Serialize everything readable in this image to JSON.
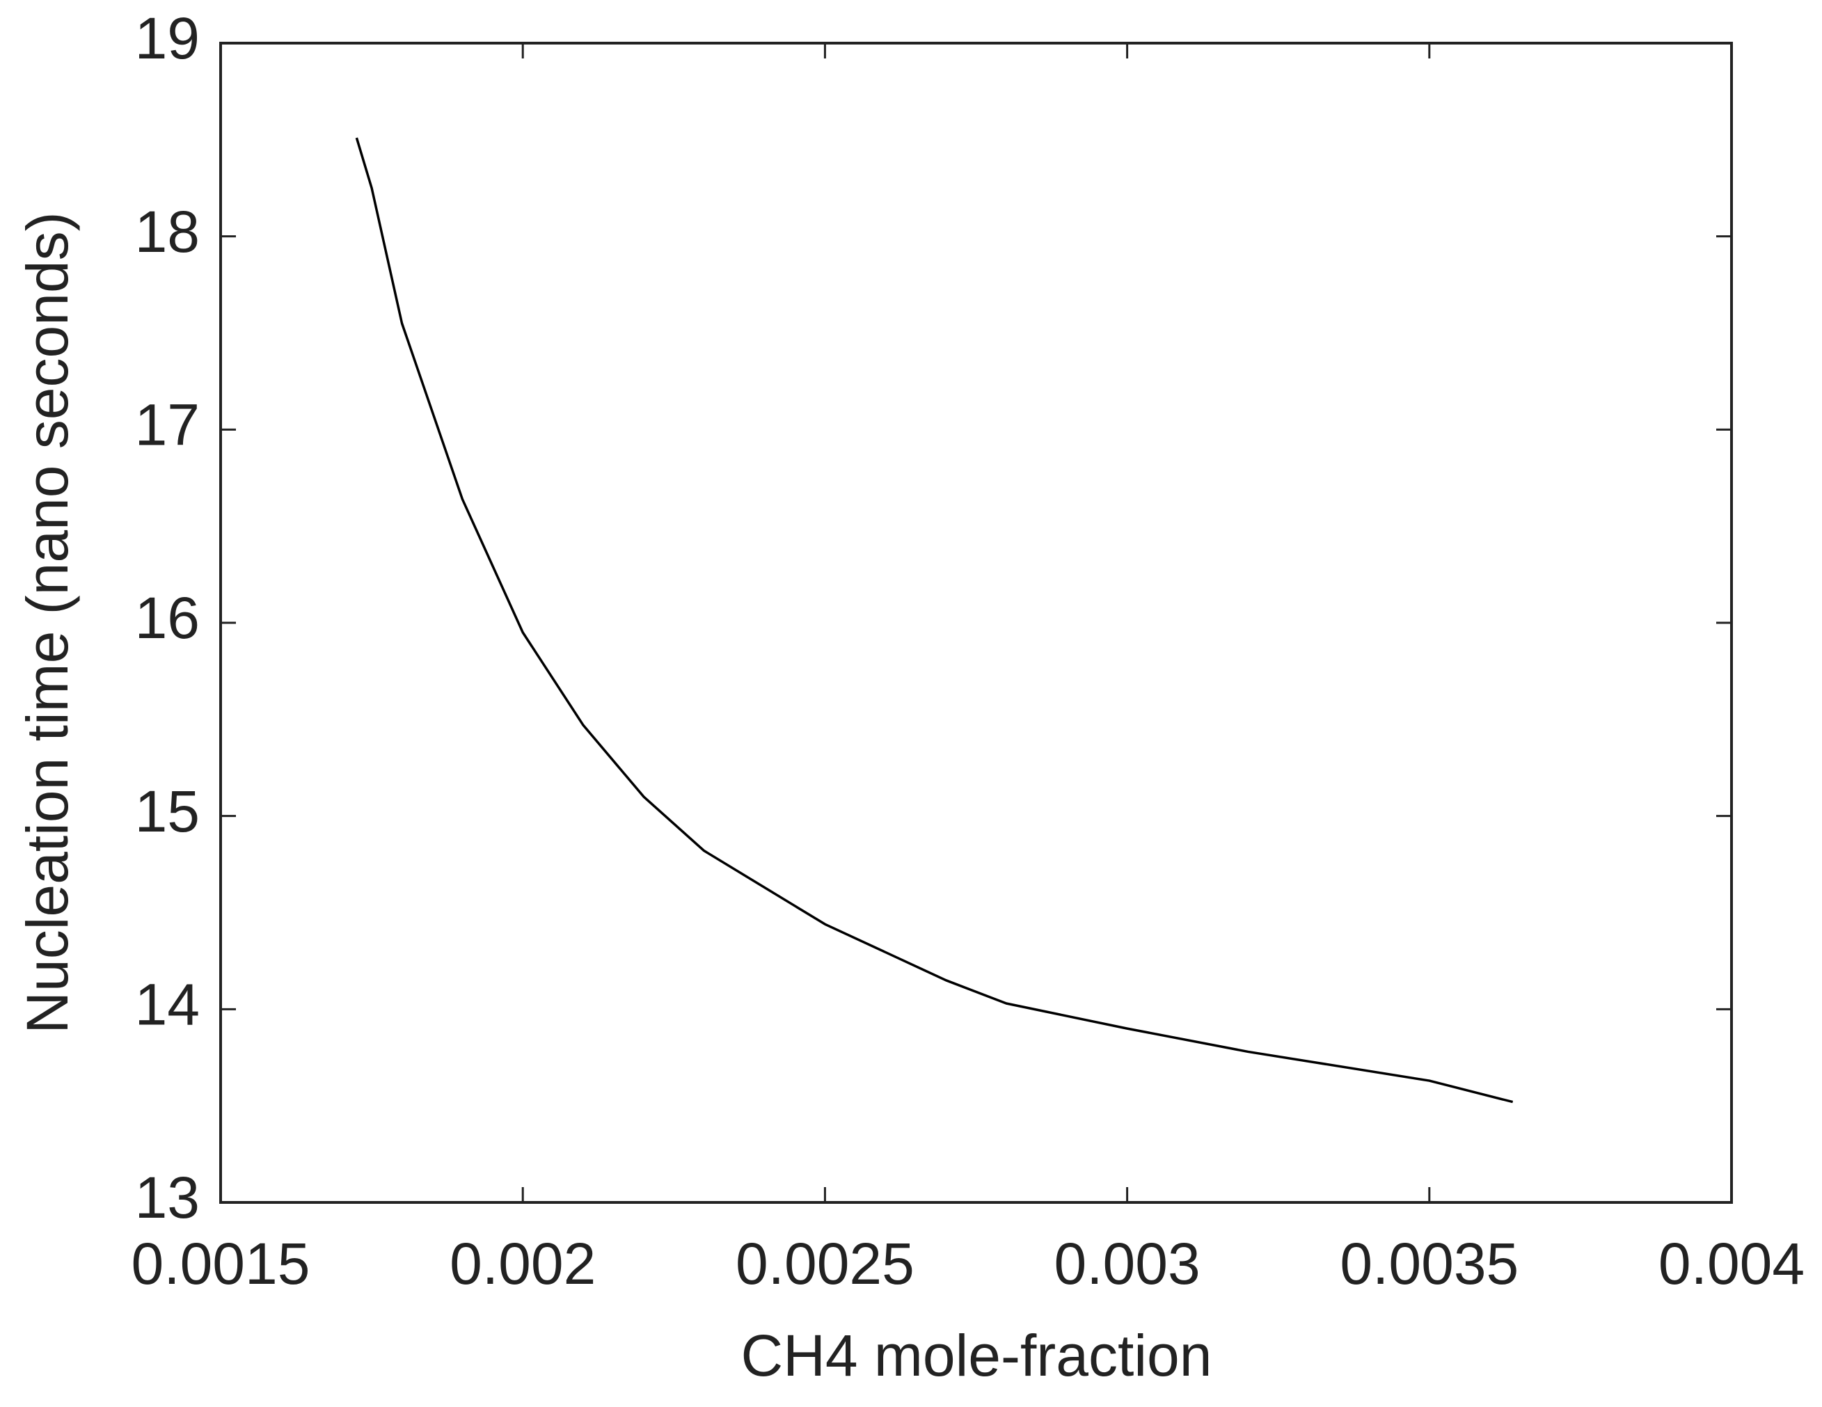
{
  "chart_data": {
    "type": "line",
    "x_label": "CH4 mole-fraction",
    "y_label": "Nucleation time (nano seconds)",
    "x": [
      0.001725,
      0.00175,
      0.0018,
      0.0019,
      0.002,
      0.0021,
      0.0022,
      0.0023,
      0.0025,
      0.0027,
      0.0028,
      0.003,
      0.0032,
      0.0035,
      0.003638
    ],
    "series": [
      {
        "color": "#000000",
        "values": [
          18.51,
          18.25,
          17.55,
          16.64,
          15.95,
          15.47,
          15.1,
          14.82,
          14.44,
          14.15,
          14.03,
          13.9,
          13.78,
          13.63,
          13.52
        ]
      }
    ],
    "xlim": [
      0.0015,
      0.004
    ],
    "xticks": [
      0.0015,
      0.002,
      0.0025,
      0.003,
      0.0035,
      0.004
    ],
    "ylim": [
      13,
      19
    ],
    "yticks": [
      13,
      14,
      15,
      16,
      17,
      18,
      19
    ]
  }
}
